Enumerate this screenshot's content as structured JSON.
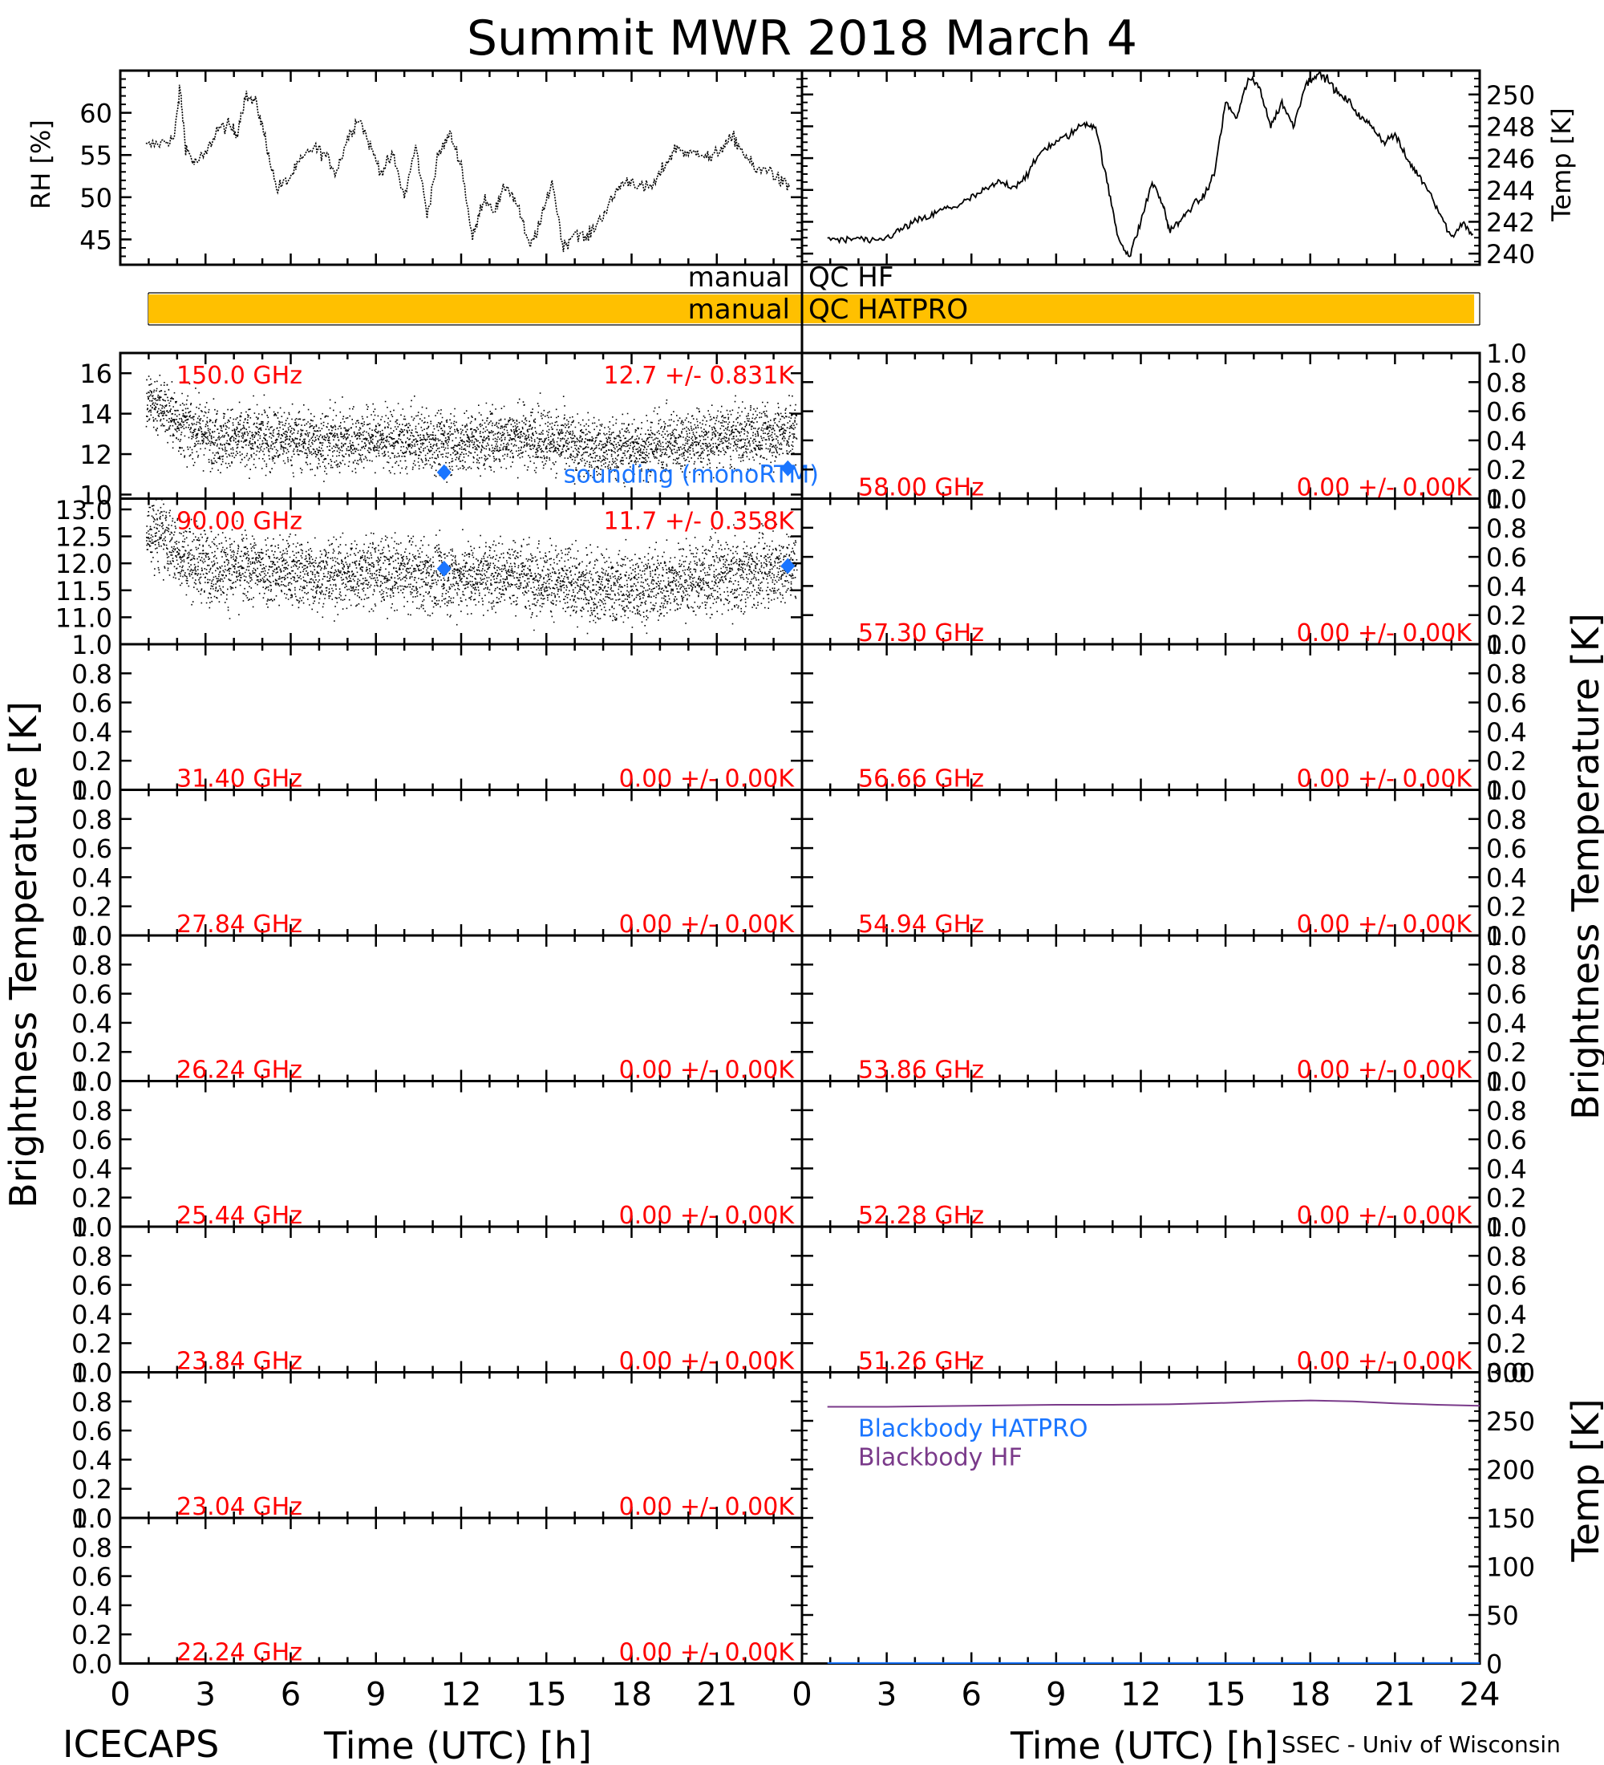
{
  "title": "Summit MWR 2018 March  4",
  "footer_left": "ICECAPS",
  "footer_right": "SSEC - Univ of Wisconsin",
  "x_label": "Time (UTC) [h]",
  "y_label_bt": "Brightness Temperature [K]",
  "colors": {
    "annotation_red": "#ff0000",
    "sounding_blue": "#1a75ff",
    "qc_orange": "#ffc000",
    "blackbody_hf": "#7a3a8a",
    "blackbody_hatpro": "#1a75ff"
  },
  "chart_data": [
    {
      "id": "rh",
      "type": "line",
      "ylabel": "RH [%]",
      "ylim": [
        42,
        65
      ],
      "yticks": [
        "45",
        "50",
        "55",
        "60"
      ],
      "xlim": [
        0,
        24
      ],
      "x": [
        0.9,
        1.5,
        1.9,
        2.1,
        2.3,
        2.6,
        3.0,
        3.4,
        3.8,
        4.1,
        4.4,
        4.8,
        5.1,
        5.5,
        5.9,
        6.3,
        6.8,
        7.2,
        7.6,
        8.0,
        8.4,
        8.8,
        9.2,
        9.6,
        10.0,
        10.4,
        10.8,
        11.2,
        11.6,
        12.0,
        12.4,
        12.8,
        13.2,
        13.6,
        14.0,
        14.4,
        14.8,
        15.2,
        15.6,
        16.0,
        16.4,
        16.8,
        17.2,
        17.6,
        18.0,
        18.4,
        18.8,
        19.2,
        19.6,
        20.0,
        20.4,
        20.8,
        21.2,
        21.6,
        22.0,
        22.4,
        22.8,
        23.2,
        23.6
      ],
      "values": [
        56.0,
        56.5,
        57.0,
        63.0,
        56.0,
        54.0,
        55.0,
        58.0,
        58.5,
        57.5,
        62.0,
        61.0,
        57.0,
        51.0,
        52.0,
        54.0,
        56.0,
        55.0,
        53.0,
        57.0,
        59.5,
        56.0,
        53.0,
        55.0,
        50.0,
        56.0,
        48.0,
        55.0,
        57.5,
        54.0,
        45.0,
        50.0,
        48.5,
        51.5,
        49.0,
        44.0,
        47.0,
        52.0,
        44.0,
        46.0,
        45.0,
        47.0,
        49.0,
        51.5,
        52.0,
        51.0,
        51.5,
        54.0,
        56.0,
        55.0,
        55.5,
        54.5,
        56.0,
        57.0,
        55.0,
        53.0,
        53.5,
        52.0,
        51.0
      ]
    },
    {
      "id": "temp",
      "type": "line",
      "ylabel": "Temp [K]",
      "ylim": [
        239.3,
        251.5
      ],
      "yticks": [
        "240",
        "242",
        "244",
        "246",
        "248",
        "250"
      ],
      "xlim": [
        0,
        24
      ],
      "x": [
        0.9,
        1.5,
        2.0,
        2.5,
        3.0,
        3.5,
        4.0,
        4.5,
        5.0,
        5.5,
        6.0,
        6.5,
        7.0,
        7.5,
        8.0,
        8.5,
        9.0,
        9.5,
        10.0,
        10.4,
        10.8,
        11.2,
        11.6,
        12.0,
        12.4,
        12.8,
        13.0,
        13.4,
        13.8,
        14.2,
        14.6,
        15.0,
        15.4,
        15.8,
        16.2,
        16.6,
        17.0,
        17.4,
        17.8,
        18.2,
        18.6,
        19.0,
        19.4,
        19.8,
        20.2,
        20.6,
        21.0,
        21.4,
        21.8,
        22.2,
        22.6,
        23.0,
        23.4,
        23.8
      ],
      "values": [
        241.0,
        240.8,
        241.0,
        240.7,
        241.0,
        241.5,
        242.0,
        242.3,
        242.8,
        243.0,
        243.5,
        244.0,
        244.5,
        244.2,
        245.0,
        246.5,
        247.0,
        247.5,
        248.2,
        248.0,
        244.5,
        241.0,
        239.8,
        242.0,
        244.5,
        243.0,
        241.5,
        242.0,
        243.0,
        243.5,
        245.0,
        249.5,
        248.5,
        251.0,
        250.5,
        248.0,
        249.5,
        248.0,
        250.5,
        251.3,
        251.0,
        250.0,
        249.5,
        248.5,
        248.0,
        247.0,
        247.5,
        246.0,
        245.0,
        244.0,
        242.5,
        241.0,
        242.0,
        241.0
      ]
    },
    {
      "id": "qc",
      "type": "bar",
      "rows": [
        {
          "label_left": "manual",
          "label_right": "QC HF",
          "bars": []
        },
        {
          "label_left": "manual",
          "label_right": "QC HATPRO",
          "bars": [
            [
              1.0,
              23.9
            ]
          ]
        }
      ]
    },
    {
      "id": "bt150",
      "type": "scatter",
      "freq": "150.0 GHz",
      "stats": "12.7 +/- 0.831K",
      "ylim": [
        9.8,
        17.0
      ],
      "yticks": [
        "10",
        "12",
        "14",
        "16"
      ],
      "mean_path": [
        [
          0.9,
          14.6
        ],
        [
          1.5,
          14.4
        ],
        [
          2.0,
          13.5
        ],
        [
          3.0,
          13.0
        ],
        [
          4.0,
          12.7
        ],
        [
          5.0,
          12.8
        ],
        [
          6.0,
          12.8
        ],
        [
          7.0,
          12.6
        ],
        [
          8.0,
          12.7
        ],
        [
          9.0,
          12.8
        ],
        [
          10.0,
          12.6
        ],
        [
          11.0,
          12.7
        ],
        [
          12.0,
          12.5
        ],
        [
          13.0,
          12.7
        ],
        [
          14.0,
          12.9
        ],
        [
          15.0,
          12.8
        ],
        [
          16.0,
          12.4
        ],
        [
          17.0,
          12.2
        ],
        [
          18.0,
          12.3
        ],
        [
          19.0,
          12.5
        ],
        [
          20.0,
          12.7
        ],
        [
          21.0,
          12.8
        ],
        [
          22.0,
          12.9
        ],
        [
          23.0,
          13.0
        ],
        [
          23.7,
          13.2
        ]
      ],
      "spread": 0.83,
      "sounding": [
        [
          11.4,
          11.1
        ],
        [
          23.5,
          11.3
        ]
      ],
      "legend": "sounding (monoRTM)"
    },
    {
      "id": "bt90",
      "type": "scatter",
      "freq": "90.00 GHz",
      "stats": "11.7 +/- 0.358K",
      "ylim": [
        10.5,
        13.2
      ],
      "yticks": [
        "11.0",
        "11.5",
        "12.0",
        "12.5",
        "13.0"
      ],
      "mean_path": [
        [
          0.9,
          12.6
        ],
        [
          1.5,
          12.5
        ],
        [
          2.0,
          12.2
        ],
        [
          3.0,
          11.95
        ],
        [
          4.0,
          11.9
        ],
        [
          5.0,
          11.9
        ],
        [
          6.0,
          11.85
        ],
        [
          7.0,
          11.8
        ],
        [
          8.0,
          11.8
        ],
        [
          9.0,
          11.85
        ],
        [
          10.0,
          11.8
        ],
        [
          11.0,
          11.75
        ],
        [
          12.0,
          11.75
        ],
        [
          13.0,
          11.8
        ],
        [
          14.0,
          11.8
        ],
        [
          15.0,
          11.7
        ],
        [
          16.0,
          11.6
        ],
        [
          17.0,
          11.55
        ],
        [
          18.0,
          11.55
        ],
        [
          19.0,
          11.6
        ],
        [
          20.0,
          11.7
        ],
        [
          21.0,
          11.75
        ],
        [
          22.0,
          11.8
        ],
        [
          23.0,
          11.9
        ],
        [
          23.7,
          11.95
        ]
      ],
      "spread": 0.36,
      "sounding": [
        [
          11.4,
          11.9
        ],
        [
          23.5,
          11.95
        ]
      ]
    },
    {
      "id": "bt58",
      "type": "scatter",
      "freq": "58.00 GHz",
      "stats": "0.00 +/- 0.00K",
      "ylim": [
        0,
        1
      ],
      "yticks": [
        "0.0",
        "0.2",
        "0.4",
        "0.6",
        "0.8",
        "1.0"
      ]
    },
    {
      "id": "bt5730",
      "type": "scatter",
      "freq": "57.30 GHz",
      "stats": "0.00 +/- 0.00K",
      "ylim": [
        0,
        1
      ],
      "yticks": [
        "0.0",
        "0.2",
        "0.4",
        "0.6",
        "0.8",
        "1.0"
      ]
    },
    {
      "id": "bt3140",
      "type": "scatter",
      "freq": "31.40 GHz",
      "stats": "0.00 +/- 0.00K",
      "ylim": [
        0,
        1
      ],
      "yticks": [
        "0.0",
        "0.2",
        "0.4",
        "0.6",
        "0.8",
        "1.0"
      ]
    },
    {
      "id": "bt5666",
      "type": "scatter",
      "freq": "56.66 GHz",
      "stats": "0.00 +/- 0.00K",
      "ylim": [
        0,
        1
      ],
      "yticks": [
        "0.0",
        "0.2",
        "0.4",
        "0.6",
        "0.8",
        "1.0"
      ]
    },
    {
      "id": "bt2784",
      "type": "scatter",
      "freq": "27.84 GHz",
      "stats": "0.00 +/- 0.00K",
      "ylim": [
        0,
        1
      ],
      "yticks": [
        "0.0",
        "0.2",
        "0.4",
        "0.6",
        "0.8",
        "1.0"
      ]
    },
    {
      "id": "bt5494",
      "type": "scatter",
      "freq": "54.94 GHz",
      "stats": "0.00 +/- 0.00K",
      "ylim": [
        0,
        1
      ],
      "yticks": [
        "0.0",
        "0.2",
        "0.4",
        "0.6",
        "0.8",
        "1.0"
      ]
    },
    {
      "id": "bt2624",
      "type": "scatter",
      "freq": "26.24 GHz",
      "stats": "0.00 +/- 0.00K",
      "ylim": [
        0,
        1
      ],
      "yticks": [
        "0.0",
        "0.2",
        "0.4",
        "0.6",
        "0.8",
        "1.0"
      ]
    },
    {
      "id": "bt5386",
      "type": "scatter",
      "freq": "53.86 GHz",
      "stats": "0.00 +/- 0.00K",
      "ylim": [
        0,
        1
      ],
      "yticks": [
        "0.0",
        "0.2",
        "0.4",
        "0.6",
        "0.8",
        "1.0"
      ]
    },
    {
      "id": "bt2544",
      "type": "scatter",
      "freq": "25.44 GHz",
      "stats": "0.00 +/- 0.00K",
      "ylim": [
        0,
        1
      ],
      "yticks": [
        "0.0",
        "0.2",
        "0.4",
        "0.6",
        "0.8",
        "1.0"
      ]
    },
    {
      "id": "bt5228",
      "type": "scatter",
      "freq": "52.28 GHz",
      "stats": "0.00 +/- 0.00K",
      "ylim": [
        0,
        1
      ],
      "yticks": [
        "0.0",
        "0.2",
        "0.4",
        "0.6",
        "0.8",
        "1.0"
      ]
    },
    {
      "id": "bt2384",
      "type": "scatter",
      "freq": "23.84 GHz",
      "stats": "0.00 +/- 0.00K",
      "ylim": [
        0,
        1
      ],
      "yticks": [
        "0.0",
        "0.2",
        "0.4",
        "0.6",
        "0.8",
        "1.0"
      ]
    },
    {
      "id": "bt5126",
      "type": "scatter",
      "freq": "51.26 GHz",
      "stats": "0.00 +/- 0.00K",
      "ylim": [
        0,
        1
      ],
      "yticks": [
        "0.0",
        "0.2",
        "0.4",
        "0.6",
        "0.8",
        "1.0"
      ]
    },
    {
      "id": "bt2304",
      "type": "scatter",
      "freq": "23.04 GHz",
      "stats": "0.00 +/- 0.00K",
      "ylim": [
        0,
        1
      ],
      "yticks": [
        "0.0",
        "0.2",
        "0.4",
        "0.6",
        "0.8",
        "1.0"
      ]
    },
    {
      "id": "bt2224",
      "type": "scatter",
      "freq": "22.24 GHz",
      "stats": "0.00 +/- 0.00K",
      "ylim": [
        0,
        1
      ],
      "yticks": [
        "0.0",
        "0.2",
        "0.4",
        "0.6",
        "0.8",
        "1.0"
      ]
    },
    {
      "id": "blackbody",
      "type": "line",
      "ylabel": "Temp [K]",
      "ylim": [
        0,
        300
      ],
      "yticks": [
        "0",
        "50",
        "100",
        "150",
        "200",
        "250",
        "300"
      ],
      "series": [
        {
          "name": "Blackbody HATPRO",
          "x": [
            0.9,
            24.0
          ],
          "values": [
            0.5,
            0.5
          ]
        },
        {
          "name": "Blackbody HF",
          "x": [
            0.9,
            3.0,
            6.0,
            9.0,
            11.0,
            13.0,
            15.0,
            16.5,
            18.0,
            19.5,
            21.0,
            22.5,
            24.0
          ],
          "values": [
            264.5,
            264.5,
            265.5,
            266.5,
            266.5,
            267.0,
            268.5,
            270.0,
            271.0,
            270.0,
            268.0,
            266.5,
            265.5
          ]
        }
      ]
    }
  ],
  "x_axis": {
    "ticks": [
      "0",
      "3",
      "6",
      "9",
      "12",
      "15",
      "18",
      "21",
      "24"
    ]
  }
}
